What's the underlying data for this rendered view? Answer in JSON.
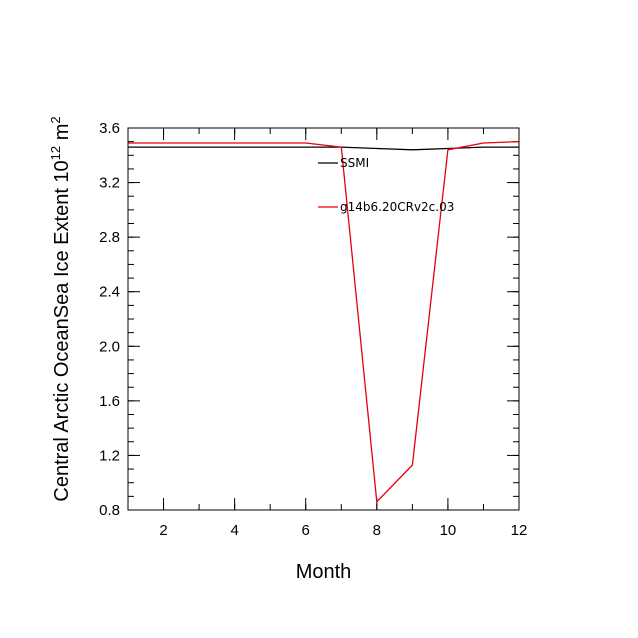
{
  "chart_data": {
    "type": "line",
    "title": "",
    "xlabel": "Month",
    "ylabel_main": "Central Arctic OceanSea Ice Extent 10",
    "ylabel_exp": "12",
    "ylabel_unit": "m",
    "ylabel_unit_exp": "2",
    "xlim": [
      1,
      12
    ],
    "ylim": [
      0.8,
      3.6
    ],
    "x_ticks": [
      2,
      4,
      6,
      8,
      10,
      12
    ],
    "y_ticks": [
      0.8,
      1.2,
      1.6,
      2.0,
      2.4,
      2.8,
      3.2,
      3.6
    ],
    "y_tick_labels": [
      "0.8",
      "1.2",
      "1.6",
      "2.0",
      "2.4",
      "2.8",
      "3.2",
      "3.6"
    ],
    "x": [
      1,
      2,
      3,
      4,
      5,
      6,
      7,
      8,
      9,
      10,
      11,
      12
    ],
    "series": [
      {
        "name": "SSMI",
        "color": "#000000",
        "values": [
          3.46,
          3.46,
          3.46,
          3.46,
          3.46,
          3.46,
          3.46,
          3.45,
          3.44,
          3.45,
          3.46,
          3.46
        ]
      },
      {
        "name": "g14b6.20CRv2c.03",
        "color": "#e8000b",
        "values": [
          3.49,
          3.49,
          3.49,
          3.49,
          3.49,
          3.49,
          3.46,
          0.86,
          1.13,
          3.44,
          3.49,
          3.5
        ]
      }
    ],
    "legend_position": "top-right inside",
    "grid": false
  }
}
